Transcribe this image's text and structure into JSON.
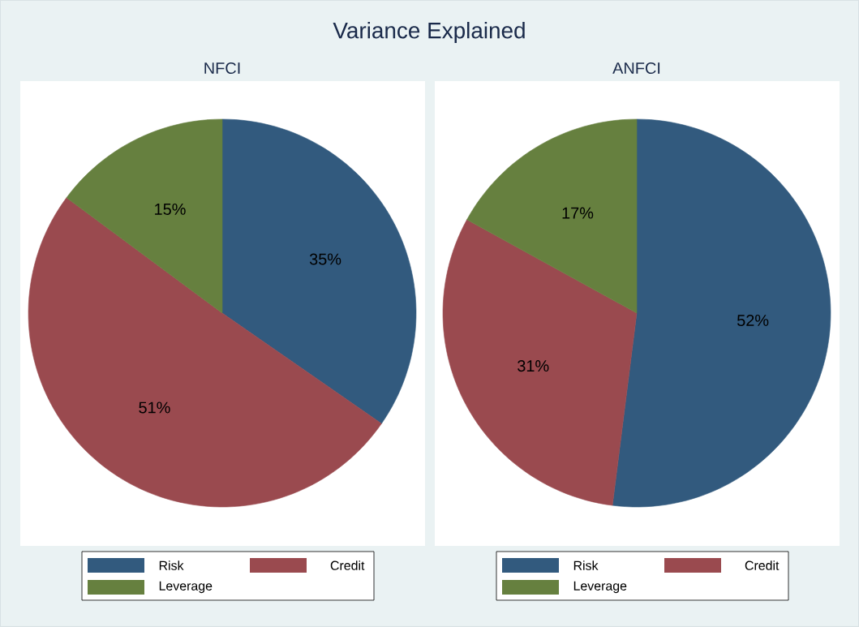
{
  "chart_data": [
    {
      "type": "pie",
      "title": "NFCI",
      "annotations": [
        "Variance Explained"
      ],
      "categories": [
        "Risk",
        "Credit",
        "Leverage"
      ],
      "values": [
        35,
        51,
        15
      ],
      "value_labels": [
        "35%",
        "51%",
        "15%"
      ],
      "colors": [
        "#325a7e",
        "#9a4a4f",
        "#66803f"
      ],
      "legend": "bottom"
    },
    {
      "type": "pie",
      "title": "ANFCI",
      "categories": [
        "Risk",
        "Credit",
        "Leverage"
      ],
      "values": [
        52,
        31,
        17
      ],
      "value_labels": [
        "52%",
        "31%",
        "17%"
      ],
      "colors": [
        "#325a7e",
        "#9a4a4f",
        "#66803f"
      ],
      "legend": "bottom"
    }
  ]
}
